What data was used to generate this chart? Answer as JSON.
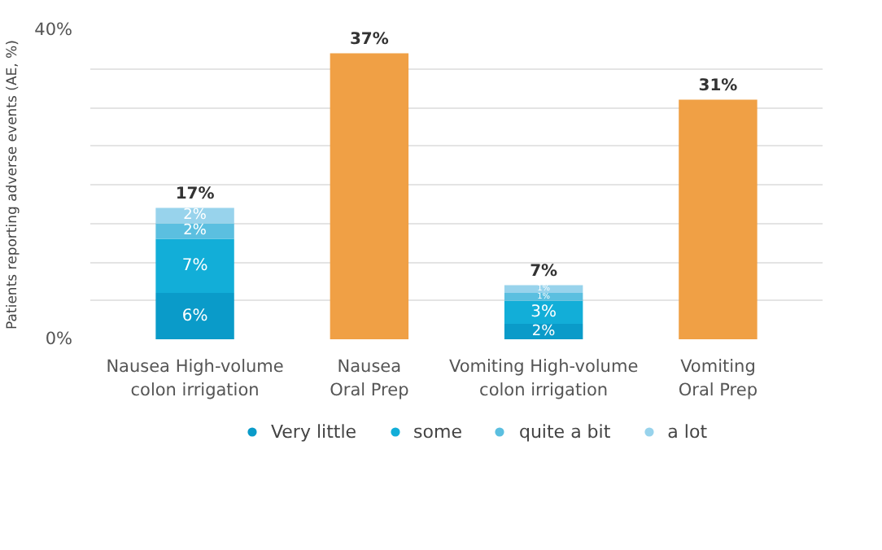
{
  "chart_data": {
    "type": "bar",
    "stacked": true,
    "ylabel": "Patients reporting adverse events (AE, %)",
    "categories": [
      "Nausea High-volume\ncolon irrigation",
      "Nausea\nOral Prep",
      "Vomiting High-volume\ncolon irrigation",
      "Vomiting\nOral Prep"
    ],
    "series": [
      {
        "name": "Very little",
        "color": "#0a9bc9",
        "values": [
          6,
          null,
          2,
          null
        ],
        "value_labels": [
          "6%",
          null,
          "2%",
          null
        ]
      },
      {
        "name": "some",
        "color": "#12aed8",
        "values": [
          7,
          null,
          3,
          null
        ],
        "value_labels": [
          "7%",
          null,
          "3%",
          null
        ]
      },
      {
        "name": "quite a bit",
        "color": "#5bbfe0",
        "values": [
          2,
          null,
          1,
          null
        ],
        "value_labels": [
          "2%",
          null,
          "1%",
          null
        ]
      },
      {
        "name": "a lot",
        "color": "#98d3ec",
        "values": [
          2,
          null,
          1,
          null
        ],
        "value_labels": [
          "2%",
          null,
          "1%",
          null
        ]
      },
      {
        "color": "#f0a045",
        "values": [
          null,
          37,
          null,
          31
        ],
        "value_labels": [
          null,
          "37%",
          null,
          "31%"
        ]
      }
    ],
    "totals": [
      "17%",
      null,
      "7%",
      null
    ],
    "ylim": [
      0,
      40
    ],
    "yticks": [
      {
        "value": 0,
        "label": "0%"
      },
      {
        "value": 5,
        "label": null
      },
      {
        "value": 10,
        "label": null
      },
      {
        "value": 15,
        "label": null
      },
      {
        "value": 20,
        "label": null
      },
      {
        "value": 25,
        "label": null
      },
      {
        "value": 30,
        "label": null
      },
      {
        "value": 35,
        "label": null
      },
      {
        "value": 40,
        "label": "40%"
      }
    ],
    "grid": "y",
    "legend": "bottom"
  }
}
